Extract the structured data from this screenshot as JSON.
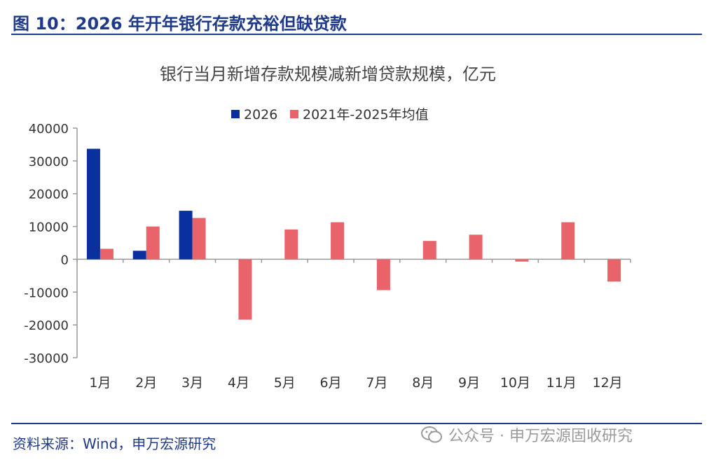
{
  "figure": {
    "title": "图 10：2026 年开年银行存款充裕但缺贷款",
    "source": "资料来源：Wind，申万宏源研究",
    "watermark": "公众号 · 申万宏源固收研究"
  },
  "colors": {
    "accent": "#1f3a8a",
    "series_2026": "#0a2f9e",
    "series_avg": "#e8636a",
    "axis": "#999999"
  },
  "chart_data": {
    "type": "bar",
    "title": "银行当月新增存款规模减新增贷款规模，亿元",
    "xlabel": "",
    "ylabel": "",
    "categories": [
      "1月",
      "2月",
      "3月",
      "4月",
      "5月",
      "6月",
      "7月",
      "8月",
      "9月",
      "10月",
      "11月",
      "12月"
    ],
    "series": [
      {
        "name": "2026",
        "values": [
          33700,
          2600,
          14800,
          null,
          null,
          null,
          null,
          null,
          null,
          null,
          null,
          null
        ]
      },
      {
        "name": "2021年-2025年均值",
        "values": [
          3200,
          10000,
          12600,
          -18400,
          9100,
          11300,
          -9400,
          5600,
          7500,
          -700,
          11300,
          -6800
        ]
      }
    ],
    "ylim": [
      -30000,
      40000
    ],
    "yticks": [
      40000,
      30000,
      20000,
      10000,
      0,
      -10000,
      -20000,
      -30000
    ],
    "legend": "top-center",
    "grid": false
  }
}
